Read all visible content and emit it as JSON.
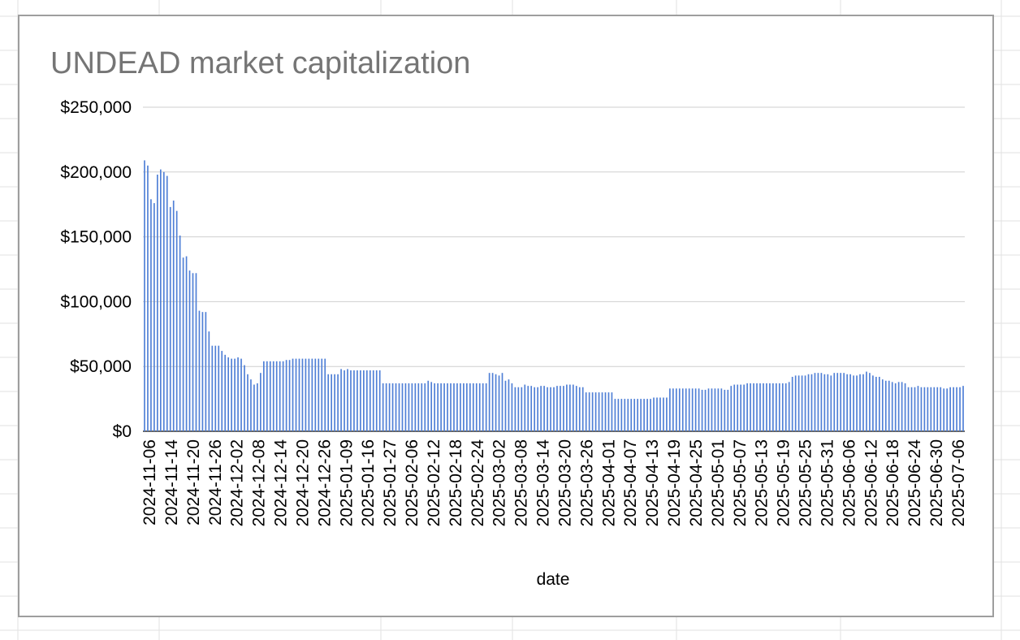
{
  "chart_data": {
    "type": "bar",
    "title": "UNDEAD market capitalization",
    "xlabel": "date",
    "ylabel": "",
    "ylim": [
      0,
      250000
    ],
    "grid": true,
    "legend": "none",
    "bar_color": "#4f7fd6",
    "y_ticks": [
      0,
      50000,
      100000,
      150000,
      200000,
      250000
    ],
    "y_tick_labels": [
      "$0",
      "$50,000",
      "$100,000",
      "$150,000",
      "$200,000",
      "$250,000"
    ],
    "x_tick_labels": [
      "2024-11-06",
      "2024-11-14",
      "2024-11-20",
      "2024-11-26",
      "2024-12-02",
      "2024-12-08",
      "2024-12-14",
      "2024-12-20",
      "2024-12-26",
      "2025-01-09",
      "2025-01-16",
      "2025-01-27",
      "2025-02-06",
      "2025-02-12",
      "2025-02-18",
      "2025-02-24",
      "2025-03-02",
      "2025-03-08",
      "2025-03-14",
      "2025-03-20",
      "2025-03-26",
      "2025-04-01",
      "2025-04-07",
      "2025-04-13",
      "2025-04-19",
      "2025-04-25",
      "2025-05-01",
      "2025-05-07",
      "2025-05-13",
      "2025-05-19",
      "2025-05-25",
      "2025-05-31",
      "2025-06-06",
      "2025-06-12",
      "2025-06-18",
      "2025-06-24",
      "2025-06-30",
      "2025-07-06"
    ],
    "values": [
      209000,
      205000,
      179000,
      176000,
      198000,
      202000,
      200000,
      197000,
      173000,
      178000,
      170000,
      151000,
      134000,
      135000,
      124000,
      122000,
      122000,
      93000,
      92000,
      92000,
      77000,
      66000,
      66000,
      66000,
      62000,
      59000,
      57000,
      56000,
      56000,
      57000,
      56000,
      51000,
      44000,
      40000,
      36000,
      37000,
      45000,
      54000,
      54000,
      54000,
      54000,
      54000,
      54000,
      54000,
      55000,
      55000,
      56000,
      56000,
      56000,
      56000,
      56000,
      56000,
      56000,
      56000,
      56000,
      56000,
      56000,
      44000,
      44000,
      44000,
      44000,
      48000,
      47000,
      48000,
      47000,
      47000,
      47000,
      47000,
      47000,
      47000,
      47000,
      47000,
      47000,
      47000,
      37000,
      37000,
      37000,
      37000,
      37000,
      37000,
      37000,
      37000,
      37000,
      37000,
      37000,
      37000,
      37000,
      37000,
      39000,
      38000,
      37000,
      37000,
      37000,
      37000,
      37000,
      37000,
      37000,
      37000,
      37000,
      37000,
      37000,
      37000,
      37000,
      37000,
      37000,
      37000,
      37000,
      45000,
      45000,
      44000,
      43000,
      45000,
      39000,
      40000,
      37000,
      34000,
      34000,
      34000,
      36000,
      35000,
      35000,
      34000,
      34000,
      35000,
      35000,
      34000,
      34000,
      34000,
      35000,
      35000,
      35000,
      36000,
      36000,
      36000,
      35000,
      34000,
      34000,
      30000,
      30000,
      30000,
      30000,
      30000,
      30000,
      30000,
      30000,
      30000,
      25000,
      25000,
      25000,
      25000,
      25000,
      25000,
      25000,
      25000,
      25000,
      25000,
      25000,
      25000,
      26000,
      26000,
      26000,
      26000,
      26000,
      33000,
      33000,
      33000,
      33000,
      33000,
      33000,
      33000,
      33000,
      33000,
      33000,
      32000,
      32000,
      33000,
      33000,
      33000,
      33000,
      33000,
      32000,
      32000,
      35000,
      36000,
      36000,
      36000,
      36000,
      37000,
      37000,
      37000,
      37000,
      37000,
      37000,
      37000,
      37000,
      37000,
      37000,
      37000,
      37000,
      37000,
      38000,
      42000,
      43000,
      43000,
      43000,
      43000,
      44000,
      44000,
      45000,
      45000,
      45000,
      44000,
      44000,
      43000,
      45000,
      45000,
      45000,
      45000,
      44000,
      44000,
      43000,
      43000,
      44000,
      44000,
      46000,
      45000,
      43000,
      42000,
      42000,
      40000,
      39000,
      39000,
      38000,
      37000,
      38000,
      38000,
      37000,
      34000,
      34000,
      34000,
      35000,
      34000,
      34000,
      34000,
      34000,
      34000,
      34000,
      34000,
      33000,
      33000,
      34000,
      34000,
      34000,
      34000,
      35000
    ]
  }
}
